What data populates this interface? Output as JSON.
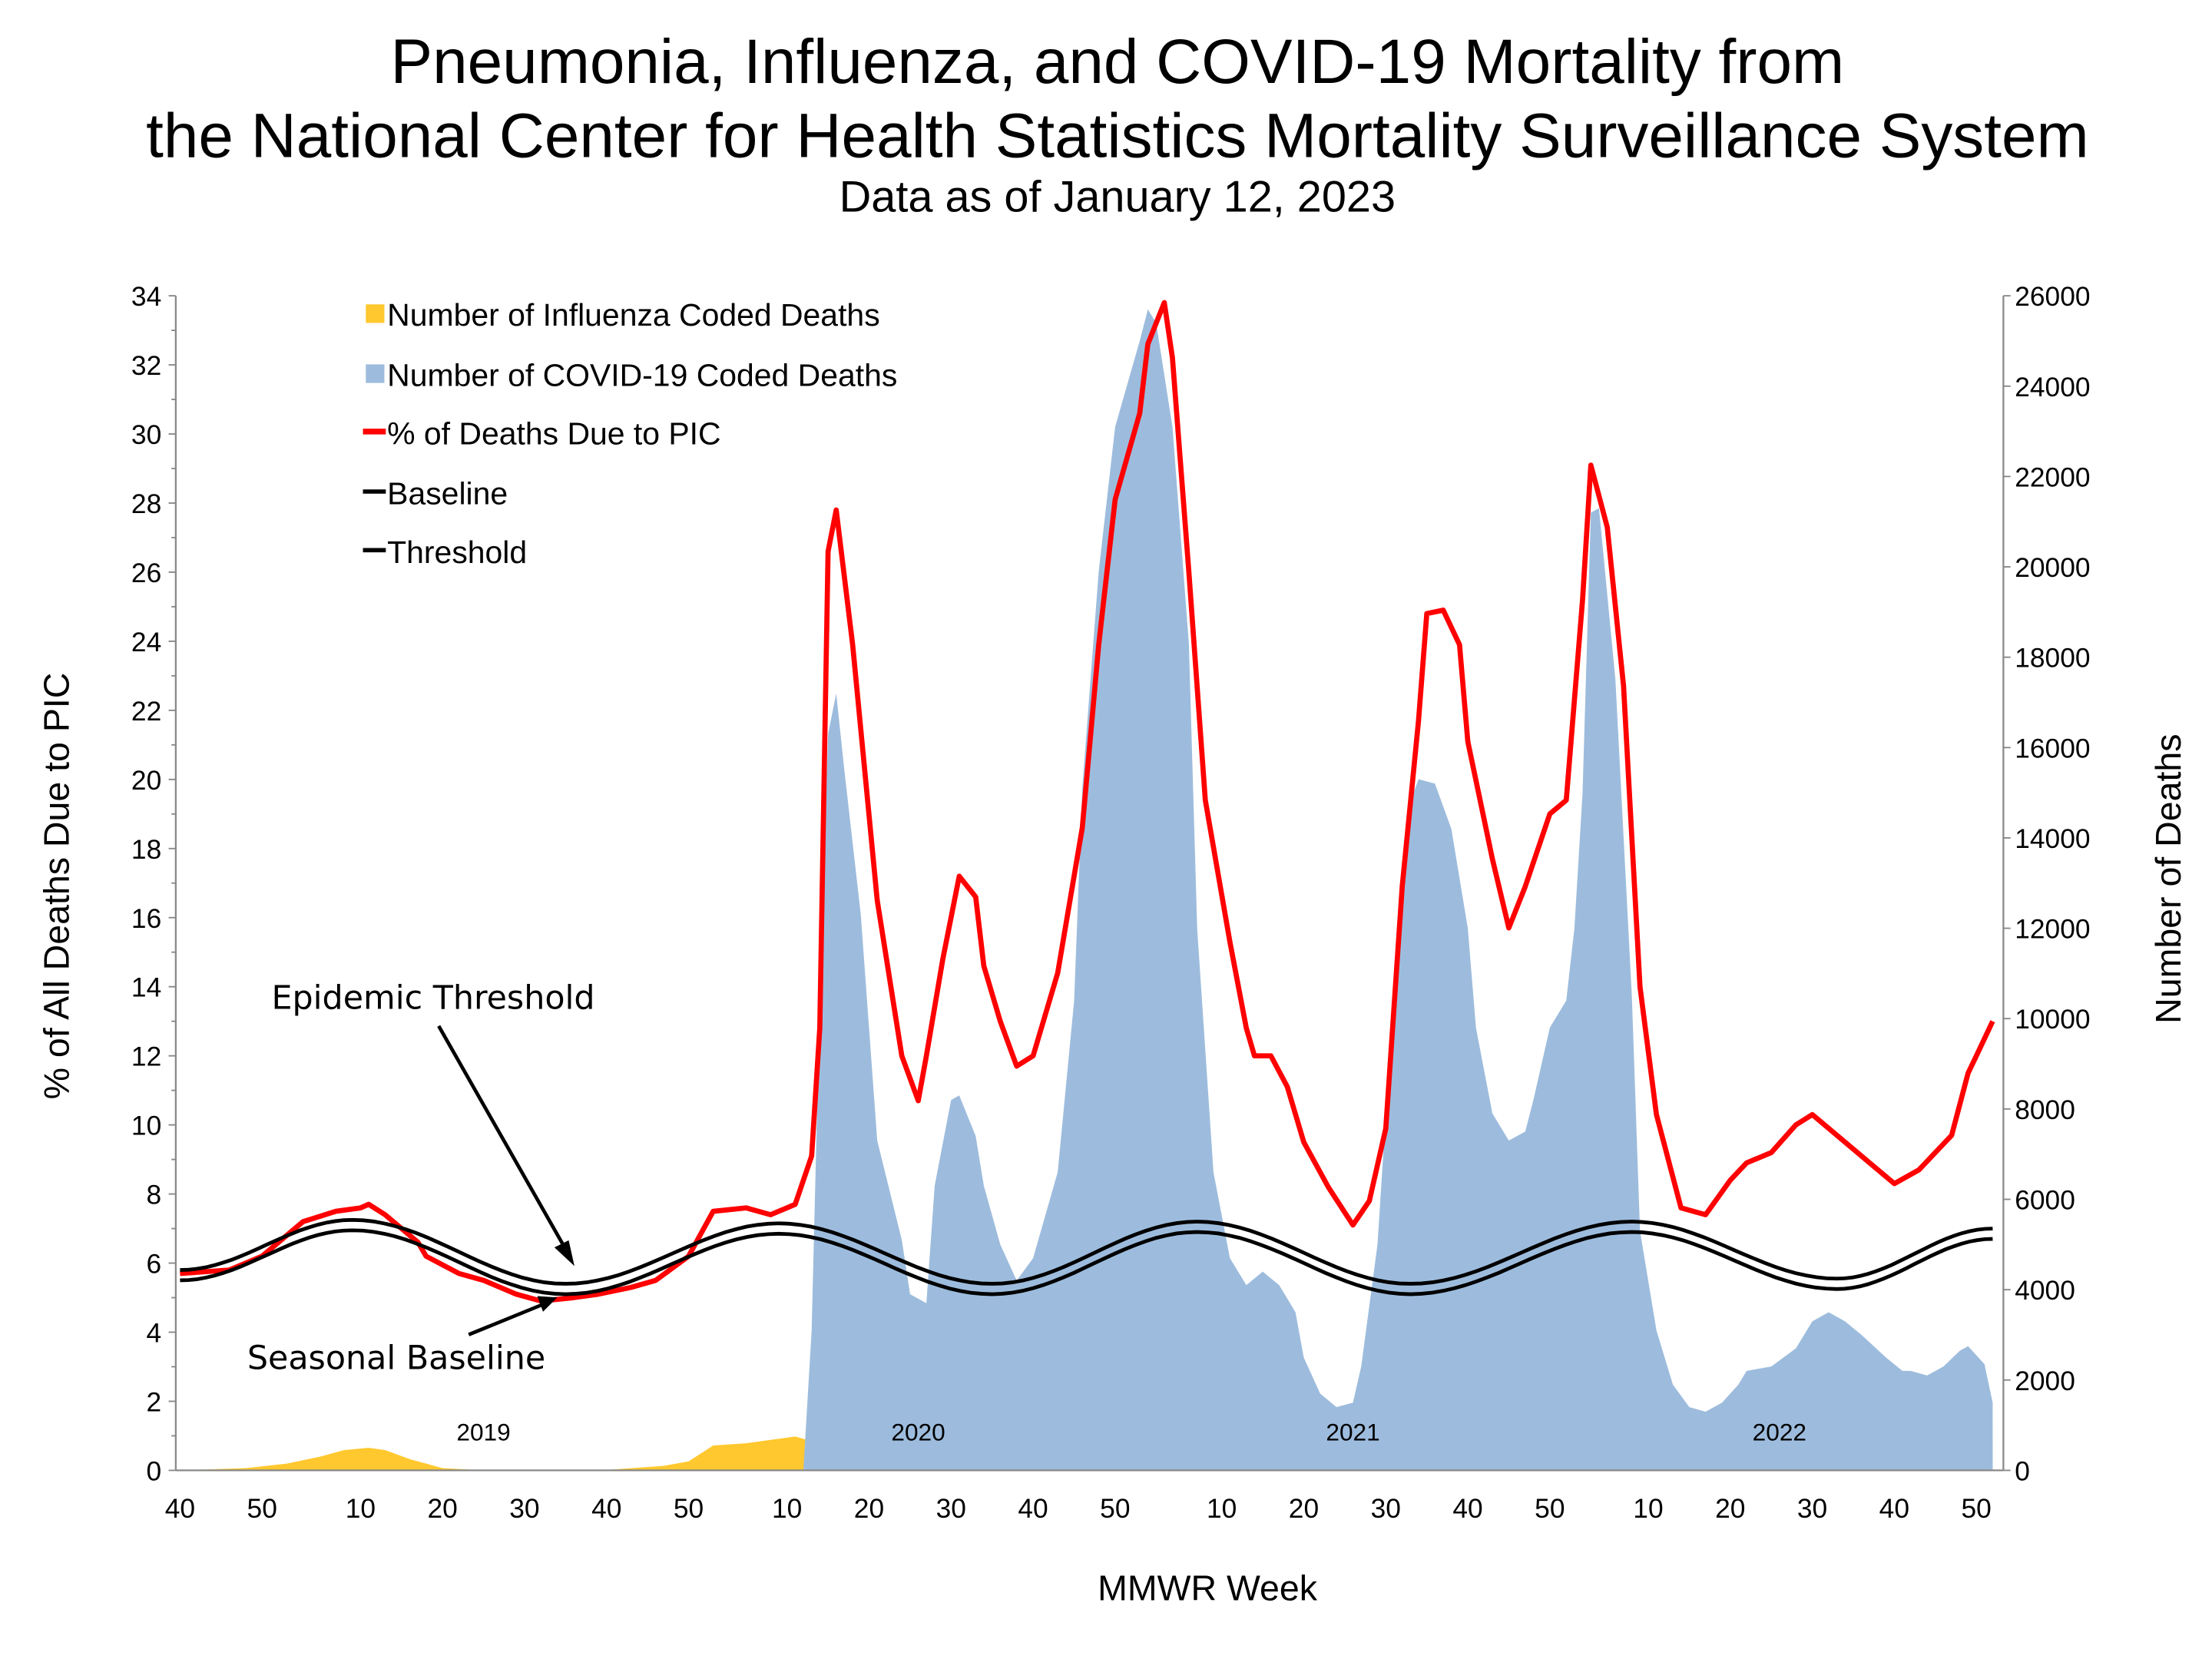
{
  "chart_data": {
    "type": "area+line",
    "title": "Pneumonia, Influenza, and COVID-19 Mortality from",
    "title_line2": "the National Center for Health Statistics Mortality Surveillance System",
    "subtitle": "Data as of January 12, 2023",
    "xlabel": "MMWR Week",
    "ylabel_left": "% of All Deaths Due to PIC",
    "ylabel_right": "Number of Deaths",
    "ylim_left": [
      0,
      34
    ],
    "ylim_right": [
      0,
      26000
    ],
    "y_ticks_left": [
      "0",
      "2",
      "4",
      "6",
      "8",
      "10",
      "12",
      "14",
      "16",
      "18",
      "20",
      "22",
      "24",
      "26",
      "28",
      "30",
      "32",
      "34"
    ],
    "y_ticks_right": [
      "0",
      "2000",
      "4000",
      "6000",
      "8000",
      "10000",
      "12000",
      "14000",
      "16000",
      "18000",
      "20000",
      "22000",
      "24000",
      "26000"
    ],
    "x_ticks": [
      {
        "label": "40",
        "week": "2018-40"
      },
      {
        "label": "50",
        "week": "2018-50"
      },
      {
        "label": "10",
        "week": "2019-10"
      },
      {
        "label": "20",
        "week": "2019-20"
      },
      {
        "label": "30",
        "week": "2019-30"
      },
      {
        "label": "40",
        "week": "2019-40"
      },
      {
        "label": "50",
        "week": "2019-50"
      },
      {
        "label": "10",
        "week": "2020-10"
      },
      {
        "label": "20",
        "week": "2020-20"
      },
      {
        "label": "30",
        "week": "2020-30"
      },
      {
        "label": "40",
        "week": "2020-40"
      },
      {
        "label": "50",
        "week": "2020-50"
      },
      {
        "label": "10",
        "week": "2021-10"
      },
      {
        "label": "20",
        "week": "2021-20"
      },
      {
        "label": "30",
        "week": "2021-30"
      },
      {
        "label": "40",
        "week": "2021-40"
      },
      {
        "label": "50",
        "week": "2021-50"
      },
      {
        "label": "10",
        "week": "2022-10"
      },
      {
        "label": "20",
        "week": "2022-20"
      },
      {
        "label": "30",
        "week": "2022-30"
      },
      {
        "label": "40",
        "week": "2022-40"
      },
      {
        "label": "50",
        "week": "2022-50"
      }
    ],
    "year_labels": [
      {
        "label": "2019",
        "week": "2019-25"
      },
      {
        "label": "2020",
        "week": "2020-26"
      },
      {
        "label": "2021",
        "week": "2021-26"
      },
      {
        "label": "2022",
        "week": "2022-26"
      }
    ],
    "grid": false,
    "legend_position": "top-left",
    "legend": [
      {
        "label": "Number of Influenza Coded Deaths",
        "color": "#FFC82E",
        "kind": "area"
      },
      {
        "label": "Number of COVID-19 Coded Deaths",
        "color": "#9DBCDD",
        "kind": "area"
      },
      {
        "label": "% of Deaths Due to PIC",
        "color": "#FF0000",
        "kind": "line"
      },
      {
        "label": "Baseline",
        "color": "#000000",
        "kind": "line"
      },
      {
        "label": "Threshold",
        "color": "#000000",
        "kind": "line"
      }
    ],
    "annotations": [
      {
        "label": "Epidemic Threshold",
        "points_to_week": "2019-36"
      },
      {
        "label": "Seasonal Baseline",
        "points_to_week": "2019-33"
      }
    ],
    "series": [
      {
        "name": "Number of Influenza Coded Deaths",
        "axis": "right",
        "type": "area",
        "color": "#FFC82E",
        "points": [
          [
            "2018-40",
            0
          ],
          [
            "2018-48",
            50
          ],
          [
            "2019-01",
            150
          ],
          [
            "2019-05",
            300
          ],
          [
            "2019-08",
            450
          ],
          [
            "2019-11",
            500
          ],
          [
            "2019-13",
            450
          ],
          [
            "2019-16",
            250
          ],
          [
            "2019-20",
            50
          ],
          [
            "2019-25",
            0
          ],
          [
            "2019-40",
            10
          ],
          [
            "2019-47",
            100
          ],
          [
            "2019-50",
            200
          ],
          [
            "2020-01",
            550
          ],
          [
            "2020-05",
            600
          ],
          [
            "2020-09",
            700
          ],
          [
            "2020-11",
            750
          ],
          [
            "2020-13",
            650
          ],
          [
            "2020-15",
            550
          ],
          [
            "2020-18",
            100
          ],
          [
            "2020-22",
            0
          ],
          [
            "2020-50",
            30
          ],
          [
            "2021-01",
            30
          ],
          [
            "2021-20",
            0
          ],
          [
            "2021-45",
            20
          ],
          [
            "2021-50",
            100
          ],
          [
            "2021-52",
            200
          ],
          [
            "2022-01",
            150
          ],
          [
            "2022-05",
            100
          ],
          [
            "2022-20",
            120
          ],
          [
            "2022-26",
            50
          ],
          [
            "2022-35",
            0
          ],
          [
            "2022-42",
            30
          ],
          [
            "2022-46",
            150
          ],
          [
            "2022-48",
            400
          ],
          [
            "2022-50",
            900
          ],
          [
            "2022-51",
            850
          ],
          [
            "2022-52",
            600
          ]
        ]
      },
      {
        "name": "Number of COVID-19 Coded Deaths",
        "axis": "right",
        "type": "area",
        "color": "#9DBCDD",
        "points": [
          [
            "2020-12",
            0
          ],
          [
            "2020-13",
            3100
          ],
          [
            "2020-14",
            10400
          ],
          [
            "2020-15",
            16300
          ],
          [
            "2020-16",
            17200
          ],
          [
            "2020-17",
            15500
          ],
          [
            "2020-19",
            12300
          ],
          [
            "2020-21",
            7300
          ],
          [
            "2020-24",
            5100
          ],
          [
            "2020-25",
            3900
          ],
          [
            "2020-27",
            3700
          ],
          [
            "2020-28",
            6300
          ],
          [
            "2020-30",
            8200
          ],
          [
            "2020-31",
            8300
          ],
          [
            "2020-33",
            7400
          ],
          [
            "2020-34",
            6300
          ],
          [
            "2020-36",
            5000
          ],
          [
            "2020-38",
            4200
          ],
          [
            "2020-40",
            4700
          ],
          [
            "2020-43",
            6600
          ],
          [
            "2020-45",
            10400
          ],
          [
            "2020-46",
            15100
          ],
          [
            "2020-48",
            19900
          ],
          [
            "2020-50",
            23100
          ],
          [
            "2020-53",
            25000
          ],
          [
            "2021-01",
            25700
          ],
          [
            "2021-02",
            25400
          ],
          [
            "2021-04",
            23100
          ],
          [
            "2021-06",
            18300
          ],
          [
            "2021-07",
            12000
          ],
          [
            "2021-09",
            6600
          ],
          [
            "2021-11",
            4700
          ],
          [
            "2021-13",
            4100
          ],
          [
            "2021-15",
            4400
          ],
          [
            "2021-17",
            4100
          ],
          [
            "2021-19",
            3500
          ],
          [
            "2021-20",
            2500
          ],
          [
            "2021-22",
            1700
          ],
          [
            "2021-24",
            1400
          ],
          [
            "2021-26",
            1500
          ],
          [
            "2021-27",
            2300
          ],
          [
            "2021-29",
            5000
          ],
          [
            "2021-31",
            10700
          ],
          [
            "2021-33",
            14800
          ],
          [
            "2021-34",
            15300
          ],
          [
            "2021-36",
            15200
          ],
          [
            "2021-38",
            14200
          ],
          [
            "2021-40",
            12000
          ],
          [
            "2021-41",
            9800
          ],
          [
            "2021-43",
            7900
          ],
          [
            "2021-45",
            7300
          ],
          [
            "2021-47",
            7500
          ],
          [
            "2021-48",
            8200
          ],
          [
            "2021-50",
            9800
          ],
          [
            "2021-52",
            10400
          ],
          [
            "2022-01",
            12000
          ],
          [
            "2022-02",
            15000
          ],
          [
            "2022-03",
            21200
          ],
          [
            "2022-04",
            21300
          ],
          [
            "2022-06",
            17500
          ],
          [
            "2022-08",
            10500
          ],
          [
            "2022-09",
            5300
          ],
          [
            "2022-11",
            3100
          ],
          [
            "2022-13",
            1900
          ],
          [
            "2022-15",
            1400
          ],
          [
            "2022-17",
            1300
          ],
          [
            "2022-19",
            1500
          ],
          [
            "2022-21",
            1900
          ],
          [
            "2022-22",
            2200
          ],
          [
            "2022-25",
            2300
          ],
          [
            "2022-28",
            2700
          ],
          [
            "2022-30",
            3300
          ],
          [
            "2022-32",
            3500
          ],
          [
            "2022-34",
            3300
          ],
          [
            "2022-36",
            3000
          ],
          [
            "2022-39",
            2500
          ],
          [
            "2022-41",
            2200
          ],
          [
            "2022-42",
            2200
          ],
          [
            "2022-44",
            2100
          ],
          [
            "2022-46",
            2300
          ],
          [
            "2022-48",
            2650
          ],
          [
            "2022-49",
            2750
          ],
          [
            "2022-51",
            2350
          ],
          [
            "2022-52",
            1500
          ]
        ]
      },
      {
        "name": "% of Deaths Due to PIC",
        "axis": "left",
        "type": "line",
        "color": "#FF0000",
        "points": [
          [
            "2018-40",
            5.7
          ],
          [
            "2018-46",
            5.8
          ],
          [
            "2018-50",
            6.2
          ],
          [
            "2019-03",
            7.2
          ],
          [
            "2019-07",
            7.5
          ],
          [
            "2019-10",
            7.6
          ],
          [
            "2019-11",
            7.7
          ],
          [
            "2019-13",
            7.4
          ],
          [
            "2019-17",
            6.6
          ],
          [
            "2019-18",
            6.2
          ],
          [
            "2019-22",
            5.7
          ],
          [
            "2019-25",
            5.5
          ],
          [
            "2019-29",
            5.1
          ],
          [
            "2019-32",
            4.9
          ],
          [
            "2019-36",
            5.0
          ],
          [
            "2019-39",
            5.1
          ],
          [
            "2019-43",
            5.3
          ],
          [
            "2019-46",
            5.5
          ],
          [
            "2019-50",
            6.2
          ],
          [
            "2020-01",
            7.5
          ],
          [
            "2020-05",
            7.6
          ],
          [
            "2020-08",
            7.4
          ],
          [
            "2020-11",
            7.7
          ],
          [
            "2020-13",
            9.1
          ],
          [
            "2020-14",
            12.8
          ],
          [
            "2020-15",
            26.6
          ],
          [
            "2020-16",
            27.8
          ],
          [
            "2020-18",
            23.9
          ],
          [
            "2020-21",
            16.5
          ],
          [
            "2020-24",
            12.0
          ],
          [
            "2020-26",
            10.7
          ],
          [
            "2020-27",
            12.0
          ],
          [
            "2020-29",
            14.8
          ],
          [
            "2020-31",
            17.2
          ],
          [
            "2020-33",
            16.6
          ],
          [
            "2020-34",
            14.6
          ],
          [
            "2020-36",
            13.0
          ],
          [
            "2020-38",
            11.7
          ],
          [
            "2020-40",
            12.0
          ],
          [
            "2020-43",
            14.4
          ],
          [
            "2020-46",
            18.6
          ],
          [
            "2020-48",
            23.9
          ],
          [
            "2020-50",
            28.1
          ],
          [
            "2020-53",
            30.6
          ],
          [
            "2021-01",
            32.6
          ],
          [
            "2021-03",
            33.8
          ],
          [
            "2021-04",
            32.2
          ],
          [
            "2021-06",
            26.0
          ],
          [
            "2021-08",
            19.4
          ],
          [
            "2021-11",
            15.3
          ],
          [
            "2021-13",
            12.8
          ],
          [
            "2021-14",
            12.0
          ],
          [
            "2021-16",
            12.0
          ],
          [
            "2021-18",
            11.1
          ],
          [
            "2021-20",
            9.5
          ],
          [
            "2021-23",
            8.2
          ],
          [
            "2021-26",
            7.1
          ],
          [
            "2021-28",
            7.8
          ],
          [
            "2021-30",
            9.9
          ],
          [
            "2021-32",
            16.9
          ],
          [
            "2021-34",
            21.7
          ],
          [
            "2021-35",
            24.8
          ],
          [
            "2021-37",
            24.9
          ],
          [
            "2021-39",
            23.9
          ],
          [
            "2021-40",
            21.1
          ],
          [
            "2021-43",
            17.7
          ],
          [
            "2021-45",
            15.7
          ],
          [
            "2021-47",
            16.9
          ],
          [
            "2021-50",
            19.0
          ],
          [
            "2021-52",
            19.4
          ],
          [
            "2022-02",
            25.2
          ],
          [
            "2022-03",
            29.1
          ],
          [
            "2022-05",
            27.3
          ],
          [
            "2022-07",
            22.7
          ],
          [
            "2022-09",
            14.0
          ],
          [
            "2022-11",
            10.3
          ],
          [
            "2022-14",
            7.6
          ],
          [
            "2022-17",
            7.4
          ],
          [
            "2022-20",
            8.4
          ],
          [
            "2022-22",
            8.9
          ],
          [
            "2022-25",
            9.2
          ],
          [
            "2022-28",
            10.0
          ],
          [
            "2022-30",
            10.3
          ],
          [
            "2022-34",
            9.5
          ],
          [
            "2022-37",
            8.9
          ],
          [
            "2022-40",
            8.3
          ],
          [
            "2022-43",
            8.7
          ],
          [
            "2022-47",
            9.7
          ],
          [
            "2022-49",
            11.5
          ],
          [
            "2022-50",
            12.0
          ],
          [
            "2022-52",
            13.0
          ]
        ]
      },
      {
        "name": "Baseline",
        "axis": "left",
        "type": "line",
        "color": "#000000",
        "points": [
          [
            "2018-40",
            5.5
          ],
          [
            "2019-09",
            6.95
          ],
          [
            "2019-35",
            5.1
          ],
          [
            "2020-09",
            6.85
          ],
          [
            "2020-35",
            5.1
          ],
          [
            "2021-07",
            6.9
          ],
          [
            "2021-33",
            5.1
          ],
          [
            "2022-08",
            6.9
          ],
          [
            "2022-33",
            5.25
          ],
          [
            "2022-52",
            6.7
          ]
        ]
      },
      {
        "name": "Threshold",
        "axis": "left",
        "type": "line",
        "color": "#000000",
        "points": [
          [
            "2018-40",
            5.8
          ],
          [
            "2019-09",
            7.25
          ],
          [
            "2019-35",
            5.4
          ],
          [
            "2020-09",
            7.15
          ],
          [
            "2020-35",
            5.4
          ],
          [
            "2021-07",
            7.2
          ],
          [
            "2021-33",
            5.4
          ],
          [
            "2022-08",
            7.2
          ],
          [
            "2022-33",
            5.55
          ],
          [
            "2022-52",
            7.0
          ]
        ]
      }
    ]
  }
}
